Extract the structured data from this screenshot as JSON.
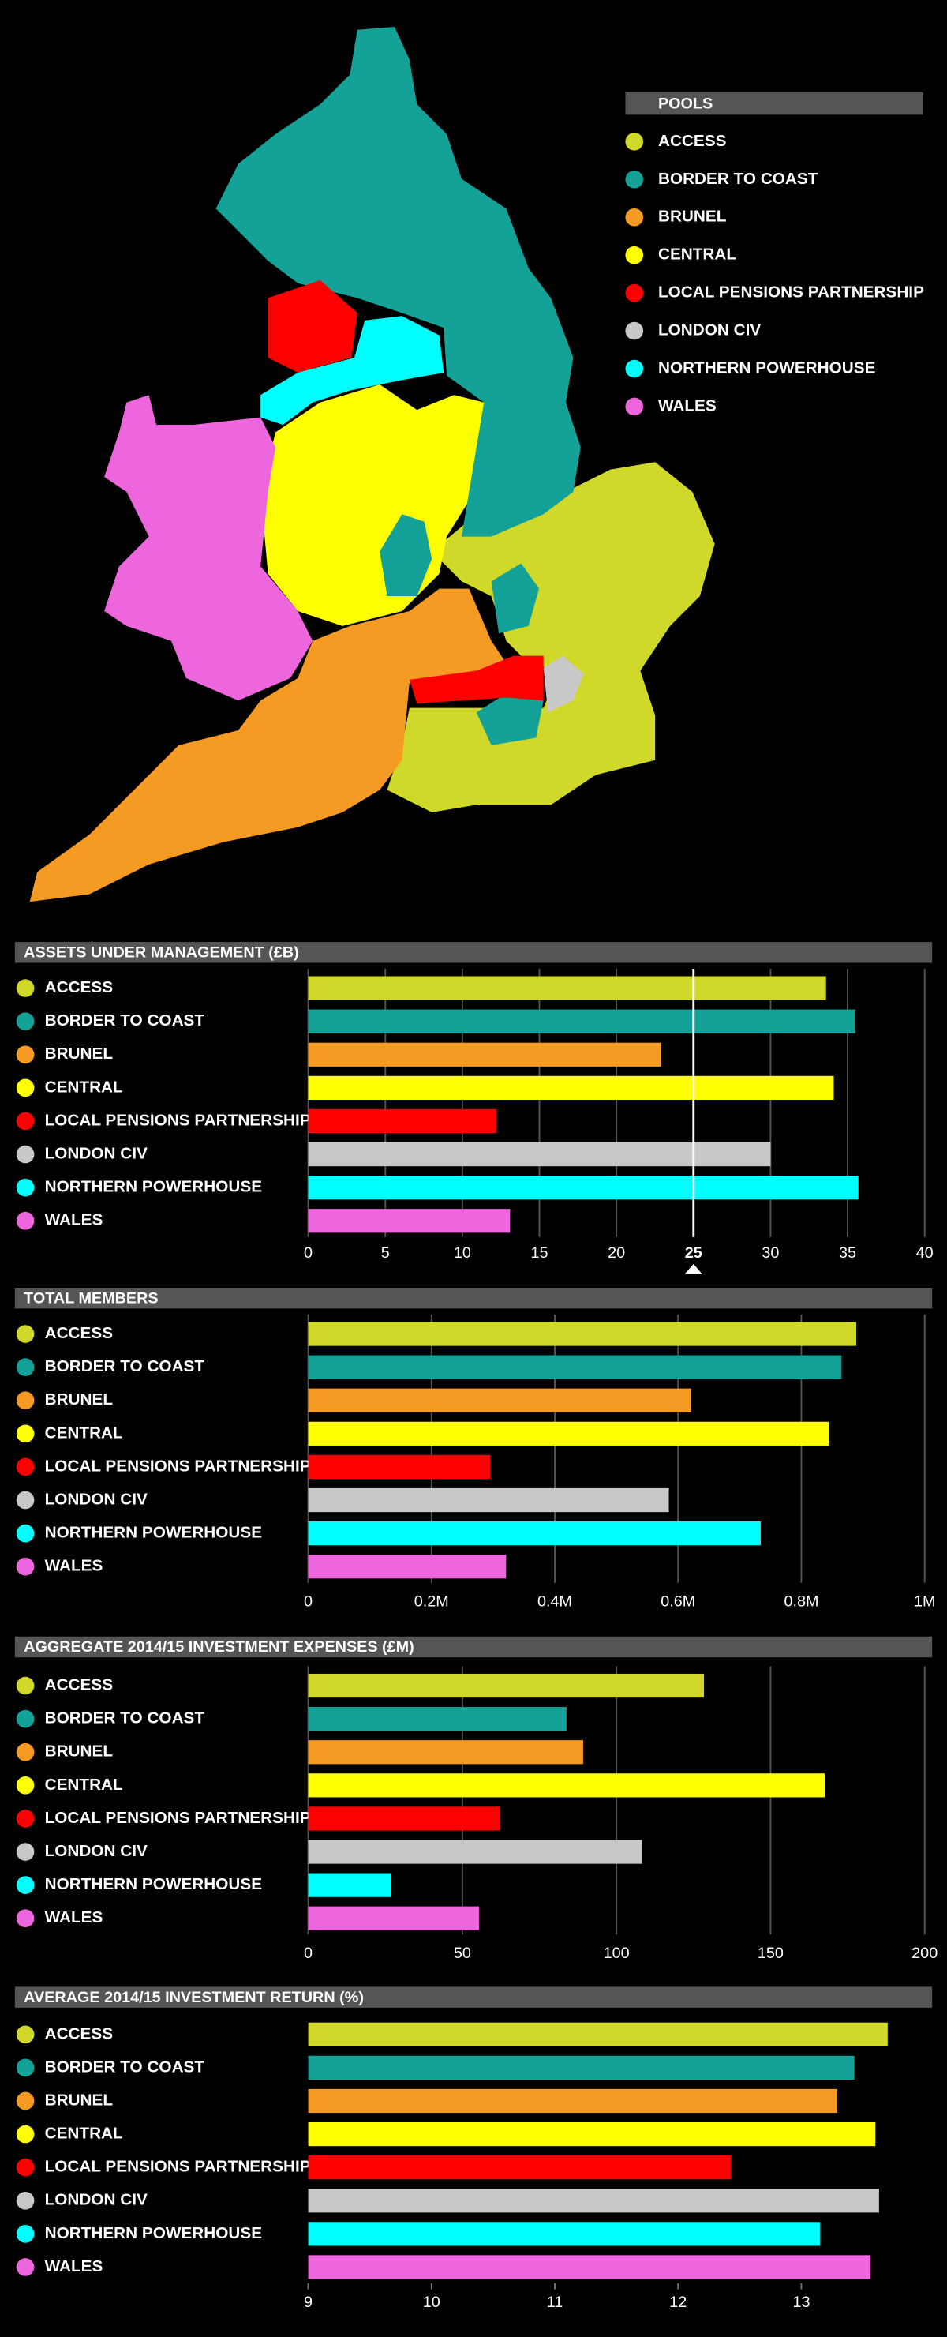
{
  "map": {
    "legend_title": "POOLS",
    "items": [
      {
        "name": "ACCESS",
        "color": "#d0d82a"
      },
      {
        "name": "BORDER TO COAST",
        "color": "#14a197"
      },
      {
        "name": "BRUNEL",
        "color": "#f59a23"
      },
      {
        "name": "CENTRAL",
        "color": "#ffff00"
      },
      {
        "name": "LOCAL PENSIONS PARTNERSHIP",
        "color": "#ff0000"
      },
      {
        "name": "LONDON CIV",
        "color": "#c8c8c8"
      },
      {
        "name": "NORTHERN POWERHOUSE",
        "color": "#00ffff"
      },
      {
        "name": "WALES",
        "color": "#ee66dd"
      }
    ]
  },
  "chart_data": [
    {
      "type": "bar",
      "title": "ASSETS UNDER MANAGEMENT (£B)",
      "categories": [
        "ACCESS",
        "BORDER TO COAST",
        "BRUNEL",
        "CENTRAL",
        "LOCAL PENSIONS PARTNERSHIP",
        "LONDON CIV",
        "NORTHERN POWERHOUSE",
        "WALES"
      ],
      "colors": [
        "#d0d82a",
        "#14a197",
        "#f59a23",
        "#ffff00",
        "#ff0000",
        "#c8c8c8",
        "#00ffff",
        "#ee66dd"
      ],
      "values": [
        33.6,
        35.5,
        22.9,
        34.1,
        12.2,
        30.0,
        35.7,
        13.1
      ],
      "xlim": [
        0,
        40
      ],
      "xticks": [
        0,
        5,
        10,
        15,
        20,
        25,
        30,
        35,
        40
      ],
      "grid": true,
      "highlight": 25
    },
    {
      "type": "bar",
      "title": "TOTAL MEMBERS",
      "categories": [
        "ACCESS",
        "BORDER TO COAST",
        "BRUNEL",
        "CENTRAL",
        "LOCAL PENSIONS PARTNERSHIP",
        "LONDON CIV",
        "NORTHERN POWERHOUSE",
        "WALES"
      ],
      "colors": [
        "#d0d82a",
        "#14a197",
        "#f59a23",
        "#ffff00",
        "#ff0000",
        "#c8c8c8",
        "#00ffff",
        "#ee66dd"
      ],
      "values": [
        889000,
        865000,
        621000,
        845000,
        295000,
        585000,
        734000,
        321000
      ],
      "xlim": [
        0,
        1000000
      ],
      "xticks": [
        0,
        {
          "value": 200000,
          "label": "0.2M"
        },
        {
          "value": 400000,
          "label": "0.4M"
        },
        {
          "value": 600000,
          "label": "0.6M"
        },
        {
          "value": 800000,
          "label": "0.8M"
        },
        {
          "value": 1000000,
          "label": "1M"
        }
      ],
      "grid": true
    },
    {
      "type": "bar",
      "title": "AGGREGATE 2014/15 INVESTMENT EXPENSES (£M)",
      "categories": [
        "ACCESS",
        "BORDER TO COAST",
        "BRUNEL",
        "CENTRAL",
        "LOCAL PENSIONS PARTNERSHIP",
        "LONDON CIV",
        "NORTHERN POWERHOUSE",
        "WALES"
      ],
      "colors": [
        "#d0d82a",
        "#14a197",
        "#f59a23",
        "#ffff00",
        "#ff0000",
        "#c8c8c8",
        "#00ffff",
        "#ee66dd"
      ],
      "values": [
        128.4,
        83.8,
        89.2,
        167.6,
        62.3,
        108.3,
        27.0,
        55.4
      ],
      "xlim": [
        0,
        200
      ],
      "xticks": [
        0,
        50,
        100,
        150,
        200
      ],
      "grid": true
    },
    {
      "type": "bar",
      "title": "AVERAGE 2014/15 INVESTMENT RETURN (%)",
      "categories": [
        "ACCESS",
        "BORDER TO COAST",
        "BRUNEL",
        "CENTRAL",
        "LOCAL PENSIONS PARTNERSHIP",
        "LONDON CIV",
        "NORTHERN POWERHOUSE",
        "WALES"
      ],
      "colors": [
        "#d0d82a",
        "#14a197",
        "#f59a23",
        "#ffff00",
        "#ff0000",
        "#c8c8c8",
        "#00ffff",
        "#ee66dd"
      ],
      "values": [
        13.7,
        13.43,
        13.29,
        13.6,
        12.43,
        13.63,
        13.15,
        13.56
      ],
      "xlim": [
        9,
        14
      ],
      "xticks": [
        9,
        10,
        11,
        12,
        13
      ],
      "grid": false
    }
  ]
}
